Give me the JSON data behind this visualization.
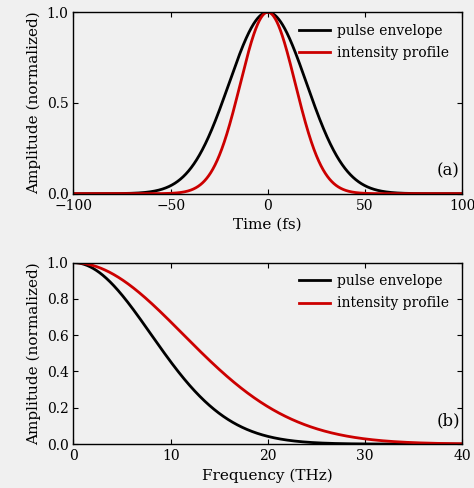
{
  "title_a": "(a)",
  "title_b": "(b)",
  "xlabel_a": "Time (fs)",
  "ylabel_a": "Amplitude (normalized)",
  "xlabel_b": "Frequency (THz)",
  "ylabel_b": "Amplitude (normalized)",
  "xlim_a": [
    -100,
    100
  ],
  "ylim_a": [
    0,
    1
  ],
  "xlim_b": [
    0,
    40
  ],
  "ylim_b": [
    0,
    1
  ],
  "xticks_a": [
    -100,
    -50,
    0,
    50,
    100
  ],
  "yticks_a": [
    0,
    0.5,
    1
  ],
  "xticks_b": [
    0,
    10,
    20,
    30,
    40
  ],
  "yticks_b": [
    0,
    0.2,
    0.4,
    0.6,
    0.8,
    1.0
  ],
  "tau_envelope_fs": 20,
  "color_envelope": "#000000",
  "color_intensity": "#cc0000",
  "linewidth": 2.0,
  "legend_envelope": "pulse envelope",
  "legend_intensity": "intensity profile",
  "legend_fontsize": 10,
  "label_fontsize": 11,
  "tick_fontsize": 10,
  "annot_fontsize": 12,
  "bg_color": "#f0f0f0"
}
